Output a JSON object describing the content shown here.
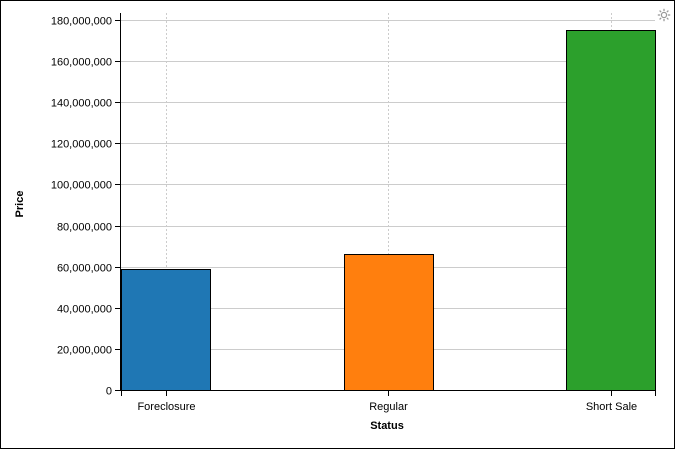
{
  "chart_data": {
    "type": "bar",
    "categories": [
      "Foreclosure",
      "Regular",
      "Short Sale"
    ],
    "values": [
      59000000,
      66000000,
      175000000
    ],
    "colors": [
      "#1f77b4",
      "#ff7f0e",
      "#2ca02c"
    ],
    "xlabel": "Status",
    "ylabel": "Price",
    "ylim": [
      0,
      180000000
    ],
    "yticks": [
      0,
      20000000,
      40000000,
      60000000,
      80000000,
      100000000,
      120000000,
      140000000,
      160000000,
      180000000
    ],
    "ytick_labels": [
      "0",
      "20,000,000",
      "40,000,000",
      "60,000,000",
      "80,000,000",
      "100,000,000",
      "120,000,000",
      "140,000,000",
      "160,000,000",
      "180,000,000"
    ],
    "grid": true,
    "bar_stroke": "#000000",
    "grid_color": "#cccccc"
  },
  "toolbar": {
    "settings_icon": "gear-icon"
  }
}
